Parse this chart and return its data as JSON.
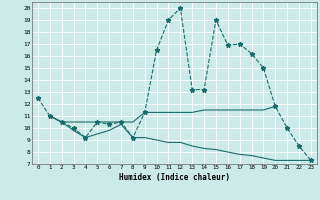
{
  "xlabel": "Humidex (Indice chaleur)",
  "xlim": [
    -0.5,
    23.5
  ],
  "ylim": [
    7,
    20.5
  ],
  "yticks": [
    7,
    8,
    9,
    10,
    11,
    12,
    13,
    14,
    15,
    16,
    17,
    18,
    19,
    20
  ],
  "xticks": [
    0,
    1,
    2,
    3,
    4,
    5,
    6,
    7,
    8,
    9,
    10,
    11,
    12,
    13,
    14,
    15,
    16,
    17,
    18,
    19,
    20,
    21,
    22,
    23
  ],
  "xtick_labels": [
    "0",
    "1",
    "2",
    "3",
    "4",
    "5",
    "6",
    "7",
    "8",
    "9",
    "10",
    "11",
    "12",
    "13",
    "14",
    "15",
    "16",
    "17",
    "18",
    "19",
    "20",
    "21",
    "22",
    "23"
  ],
  "bg_color": "#cceae7",
  "line_color": "#1a6b6b",
  "grid_color": "#ffffff",
  "main_series": {
    "x": [
      0,
      1,
      2,
      3,
      4,
      5,
      6,
      7,
      8,
      9,
      10,
      11,
      12,
      13,
      14,
      15,
      16,
      17,
      18,
      19,
      20,
      21,
      22,
      23
    ],
    "y": [
      12.5,
      11.0,
      10.5,
      10.0,
      9.2,
      10.5,
      10.3,
      10.5,
      9.2,
      11.3,
      16.5,
      19.0,
      20.0,
      13.2,
      13.2,
      19.0,
      16.9,
      17.0,
      16.2,
      15.0,
      11.8,
      10.0,
      8.5,
      7.3
    ]
  },
  "line2": {
    "x": [
      1,
      2,
      3,
      4,
      5,
      6,
      7,
      8,
      9,
      10,
      11,
      12,
      13,
      14,
      15,
      16,
      17,
      18,
      19,
      20
    ],
    "y": [
      11.0,
      10.5,
      10.5,
      10.5,
      10.5,
      10.5,
      10.5,
      10.5,
      11.3,
      11.3,
      11.3,
      11.3,
      11.3,
      11.5,
      11.5,
      11.5,
      11.5,
      11.5,
      11.5,
      11.8
    ]
  },
  "line3": {
    "x": [
      1,
      2,
      3,
      4,
      5,
      6,
      7,
      8,
      9,
      10,
      11,
      12,
      13,
      14,
      15,
      16,
      17,
      18,
      19,
      20,
      21,
      22,
      23
    ],
    "y": [
      11.0,
      10.5,
      9.8,
      9.2,
      9.5,
      9.8,
      10.3,
      9.2,
      9.2,
      9.0,
      8.8,
      8.8,
      8.5,
      8.3,
      8.2,
      8.0,
      7.8,
      7.7,
      7.5,
      7.3,
      7.3,
      7.3,
      7.3
    ]
  }
}
